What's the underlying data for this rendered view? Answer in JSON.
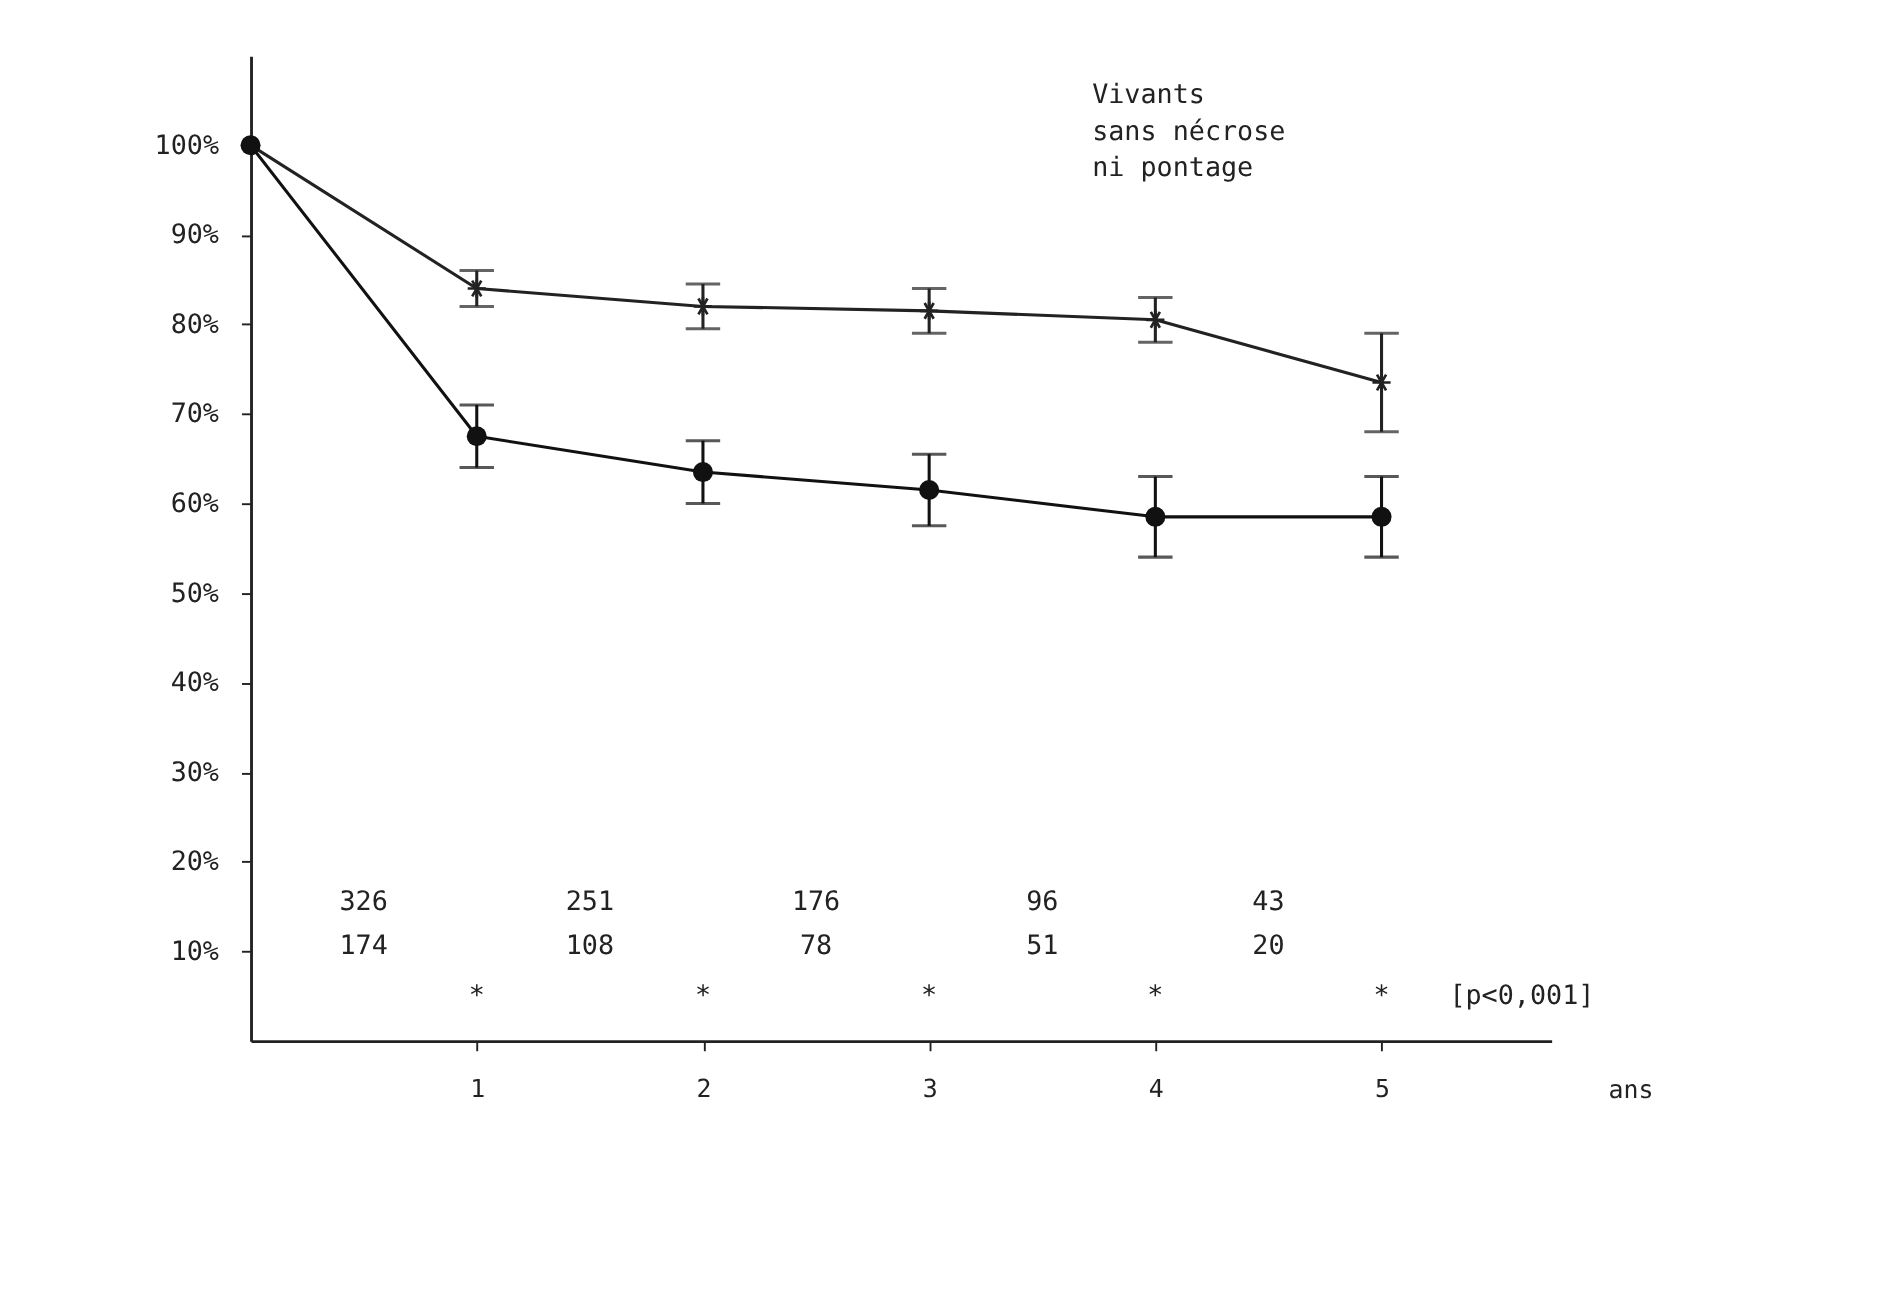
{
  "chart_data": {
    "type": "line",
    "title": "Vivants\nsans nécrose\nni pontage",
    "xlabel": "ans",
    "x": [
      0,
      1,
      2,
      3,
      4,
      5
    ],
    "xlim": [
      0,
      5.75
    ],
    "xticks": [
      1,
      2,
      3,
      4,
      5
    ],
    "ylim": [
      0,
      110
    ],
    "yticks": [
      {
        "value": 10,
        "label": "10%"
      },
      {
        "value": 20,
        "label": "20%"
      },
      {
        "value": 30,
        "label": "30%"
      },
      {
        "value": 40,
        "label": "40%"
      },
      {
        "value": 50,
        "label": "50%"
      },
      {
        "value": 60,
        "label": "60%"
      },
      {
        "value": 70,
        "label": "70%"
      },
      {
        "value": 80,
        "label": "80%"
      },
      {
        "value": 90,
        "label": "90%"
      },
      {
        "value": 100,
        "label": "100%"
      }
    ],
    "series": [
      {
        "color": "#222222",
        "marker": "cross",
        "values": [
          100,
          84,
          82,
          81.5,
          80.5,
          73.5
        ],
        "errors": [
          null,
          2,
          2.5,
          2.5,
          2.5,
          5.5
        ]
      },
      {
        "color": "#111111",
        "marker": "circle",
        "values": [
          100,
          67.5,
          63.5,
          61.5,
          58.5,
          58.5
        ],
        "errors": [
          null,
          3.5,
          3.5,
          4,
          4.5,
          4.5
        ]
      }
    ],
    "annotations": [
      "326",
      "251",
      "176",
      "96",
      "43",
      "174",
      "108",
      "78",
      "51",
      "20",
      "*",
      "*",
      "*",
      "*",
      "*",
      "[p<0,001]"
    ],
    "grid": false,
    "line_style": "solid"
  }
}
